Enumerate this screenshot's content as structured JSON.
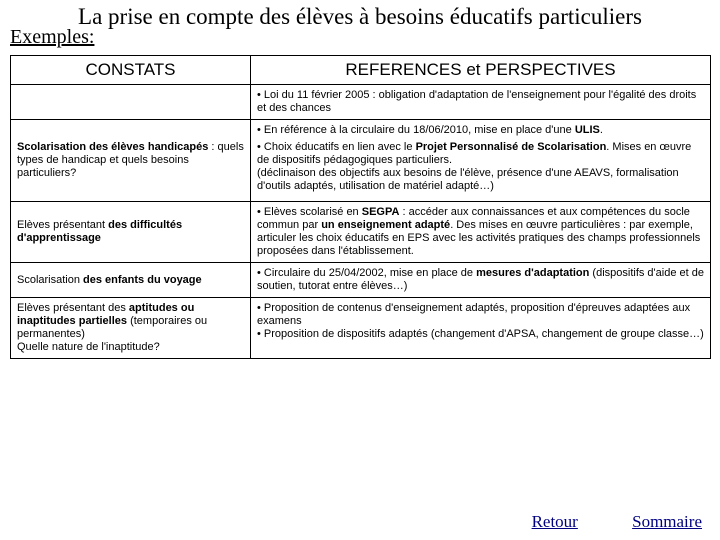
{
  "title": "La prise en compte des élèves à besoins éducatifs particuliers",
  "exemples_label": "Exemples:",
  "header": {
    "constats": "CONSTATS",
    "refs": "REFERENCES et PERSPECTIVES"
  },
  "row0": {
    "refs_html": "• Loi du 11 février 2005 : obligation d'adaptation de l'enseignement pour l'égalité des droits et des chances"
  },
  "row1": {
    "constats_html": "<b>Scolarisation des élèves handicapés</b> : quels types de handicap et quels besoins particuliers?",
    "refs_html": "<p>• En référence à la circulaire du 18/06/2010, mise en place d'une <b>ULIS</b>.</p><p>• Choix éducatifs en lien avec le <b>Projet Personnalisé de Scolarisation</b>. Mises en œuvre de dispositifs pédagogiques particuliers.<br>(déclinaison des objectifs aux besoins de l'élève, présence d'une AEAVS, formalisation d'outils adaptés, utilisation de matériel adapté…)</p>"
  },
  "row2": {
    "constats_html": "Elèves présentant <b>des difficultés d'apprentissage</b>",
    "refs_html": "• Elèves scolarisé en <b>SEGPA</b> : accéder aux connaissances et aux compétences du socle commun par <b>un enseignement adapté</b>. Des mises en œuvre particulières : par exemple, articuler les choix éducatifs en EPS avec les activités pratiques des champs professionnels proposées dans l'établissement."
  },
  "row3": {
    "constats_html": "Scolarisation <b>des enfants du voyage</b>",
    "refs_html": "• Circulaire du 25/04/2002, mise en place de <b>mesures d'adaptation</b> (dispositifs d'aide et de soutien, tutorat entre élèves…)"
  },
  "row4": {
    "constats_html": "Elèves présentant des <b>aptitudes ou inaptitudes partielles</b> (temporaires ou permanentes)<br>Quelle nature de l'inaptitude?",
    "refs_html": "• Proposition de contenus d'enseignement adaptés, proposition d'épreuves adaptées aux examens<br>• Proposition de dispositifs adaptés (changement d'APSA, changement de groupe classe…)"
  },
  "footer": {
    "retour": "Retour",
    "sommaire": "Sommaire"
  },
  "colors": {
    "link": "#000080",
    "text": "#000000",
    "bg": "#ffffff",
    "border": "#000000"
  }
}
